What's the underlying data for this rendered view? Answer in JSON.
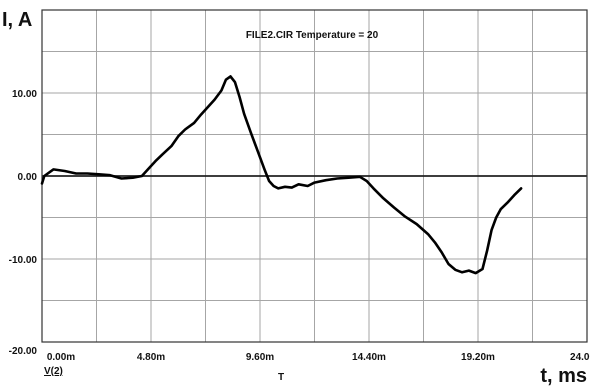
{
  "chart_data": {
    "type": "line",
    "annotation": "FILE2.CIR Temperature = 20",
    "xlabel": "t, ms",
    "x_sublabel": "T",
    "ylabel": "I, A",
    "trace_label": "V(2)",
    "xlim": [
      0,
      24
    ],
    "ylim": [
      -20,
      20
    ],
    "x_ticks": [
      {
        "value": 0,
        "label": "0.00m"
      },
      {
        "value": 4.8,
        "label": "4.80m"
      },
      {
        "value": 9.6,
        "label": "9.60m"
      },
      {
        "value": 14.4,
        "label": "14.40m"
      },
      {
        "value": 19.2,
        "label": "19.20m"
      },
      {
        "value": 24.0,
        "label": "24.00m"
      }
    ],
    "y_ticks": [
      {
        "value": 10,
        "label": "10.00"
      },
      {
        "value": 0,
        "label": "0.00"
      },
      {
        "value": -10,
        "label": "-10.00"
      },
      {
        "value": -20,
        "label": "-20.00"
      }
    ],
    "grid": true,
    "series": [
      {
        "values_x": [
          0.0,
          0.1,
          0.5,
          1.0,
          1.5,
          2.0,
          2.5,
          3.0,
          3.5,
          4.0,
          4.4,
          4.7,
          5.0,
          5.3,
          5.7,
          6.0,
          6.3,
          6.7,
          7.0,
          7.3,
          7.6,
          7.9,
          8.1,
          8.3,
          8.5,
          8.7,
          8.9,
          9.2,
          9.5,
          9.8,
          10.0,
          10.2,
          10.4,
          10.7,
          11.0,
          11.3,
          11.7,
          12.0,
          12.5,
          13.0,
          13.5,
          14.0,
          14.3,
          14.6,
          15.0,
          15.5,
          16.0,
          16.5,
          17.0,
          17.3,
          17.6,
          17.9,
          18.2,
          18.5,
          18.8,
          19.1,
          19.4,
          19.6,
          19.8,
          20.0,
          20.2,
          20.5,
          20.8,
          21.1
        ],
        "values_y": [
          -0.9,
          0.0,
          0.8,
          0.6,
          0.3,
          0.3,
          0.2,
          0.1,
          -0.3,
          -0.2,
          0.0,
          0.9,
          1.8,
          2.6,
          3.6,
          4.8,
          5.6,
          6.4,
          7.4,
          8.3,
          9.2,
          10.3,
          11.6,
          12.0,
          11.3,
          9.5,
          7.5,
          5.2,
          3.0,
          0.8,
          -0.6,
          -1.2,
          -1.5,
          -1.3,
          -1.4,
          -1.0,
          -1.2,
          -0.8,
          -0.5,
          -0.3,
          -0.2,
          -0.1,
          -0.6,
          -1.5,
          -2.6,
          -3.8,
          -4.9,
          -5.8,
          -7.0,
          -8.0,
          -9.2,
          -10.6,
          -11.3,
          -11.6,
          -11.4,
          -11.7,
          -11.2,
          -9.0,
          -6.5,
          -5.0,
          -4.0,
          -3.2,
          -2.3,
          -1.5
        ]
      }
    ]
  }
}
